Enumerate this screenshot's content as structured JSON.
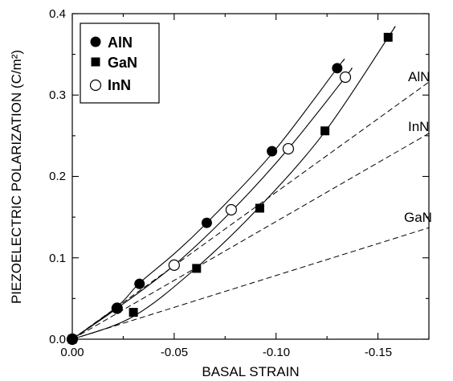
{
  "chart_data": {
    "type": "scatter",
    "xlabel": "BASAL STRAIN",
    "ylabel": "PIEZOELECTRIC POLARIZATION (C/m²)",
    "xlim": [
      0.0,
      -0.175
    ],
    "ylim": [
      0.0,
      0.4
    ],
    "x_ticks": [
      "0.00",
      "-0.05",
      "-0.10",
      "-0.15"
    ],
    "y_ticks": [
      "0.0",
      "0.1",
      "0.2",
      "0.3",
      "0.4"
    ],
    "legend": "top-left",
    "series": [
      {
        "name": "AlN",
        "marker": "filled-circle",
        "points": [
          [
            0.0,
            0.0
          ],
          [
            -0.022,
            0.038
          ],
          [
            -0.033,
            0.068
          ],
          [
            -0.066,
            0.143
          ],
          [
            -0.098,
            0.231
          ],
          [
            -0.13,
            0.333
          ]
        ],
        "fit_curve": [
          [
            0.0,
            0.0
          ],
          [
            -0.022,
            0.04
          ],
          [
            -0.033,
            0.069
          ],
          [
            -0.05,
            0.105
          ],
          [
            -0.066,
            0.143
          ],
          [
            -0.098,
            0.228
          ],
          [
            -0.13,
            0.333
          ],
          [
            -0.133,
            0.342
          ]
        ]
      },
      {
        "name": "GaN",
        "marker": "filled-square",
        "points": [
          [
            0.0,
            0.0
          ],
          [
            -0.03,
            0.033
          ],
          [
            -0.061,
            0.087
          ],
          [
            -0.092,
            0.161
          ],
          [
            -0.124,
            0.256
          ],
          [
            -0.155,
            0.371
          ]
        ],
        "fit_curve": [
          [
            0.0,
            0.0
          ],
          [
            -0.03,
            0.028
          ],
          [
            -0.061,
            0.088
          ],
          [
            -0.092,
            0.163
          ],
          [
            -0.124,
            0.255
          ],
          [
            -0.155,
            0.371
          ],
          [
            -0.158,
            0.383
          ]
        ]
      },
      {
        "name": "InN",
        "marker": "open-circle",
        "points": [
          [
            0.0,
            0.0
          ],
          [
            -0.022,
            0.038
          ],
          [
            -0.05,
            0.091
          ],
          [
            -0.078,
            0.159
          ],
          [
            -0.106,
            0.234
          ],
          [
            -0.134,
            0.322
          ]
        ],
        "fit_curve": [
          [
            0.0,
            0.0
          ],
          [
            -0.022,
            0.038
          ],
          [
            -0.05,
            0.091
          ],
          [
            -0.078,
            0.157
          ],
          [
            -0.106,
            0.234
          ],
          [
            -0.134,
            0.322
          ],
          [
            -0.137,
            0.333
          ]
        ]
      }
    ],
    "linear_lines": [
      {
        "label": "AlN",
        "end": [
          -0.175,
          0.316
        ]
      },
      {
        "label": "InN",
        "end": [
          -0.175,
          0.253
        ]
      },
      {
        "label": "GaN",
        "end": [
          -0.175,
          0.137
        ]
      }
    ]
  }
}
